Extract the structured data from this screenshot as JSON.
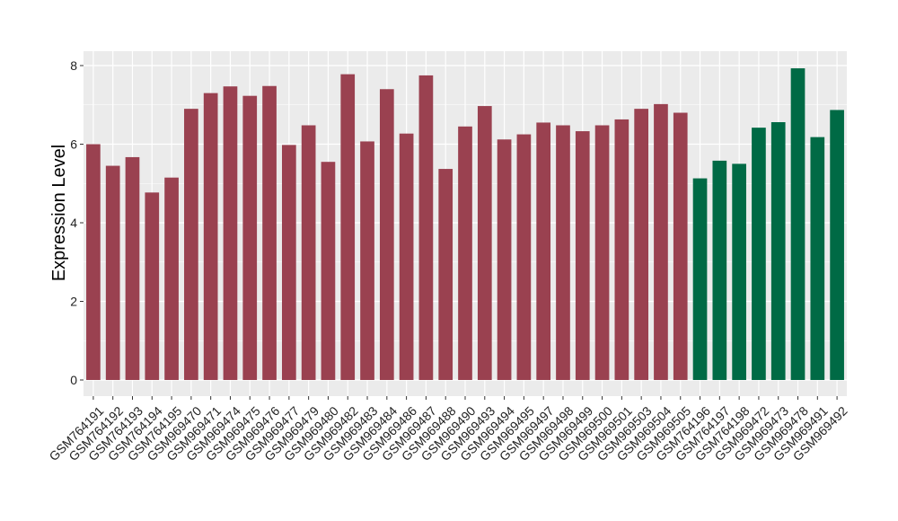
{
  "chart_data": {
    "type": "bar",
    "title": "",
    "xlabel": "",
    "ylabel": "Expression Level",
    "ylim": [
      0,
      8.3
    ],
    "yticks": [
      0,
      2,
      4,
      6,
      8
    ],
    "grid": true,
    "legend": "none",
    "background_color": "#EBEBEB",
    "grid_color": "#FFFFFF",
    "categories": [
      "GSM764191",
      "GSM764192",
      "GSM764193",
      "GSM764194",
      "GSM764195",
      "GSM969470",
      "GSM969471",
      "GSM969474",
      "GSM969475",
      "GSM969476",
      "GSM969477",
      "GSM969479",
      "GSM969480",
      "GSM969482",
      "GSM969483",
      "GSM969484",
      "GSM969486",
      "GSM969487",
      "GSM969488",
      "GSM969490",
      "GSM969493",
      "GSM969494",
      "GSM969495",
      "GSM969497",
      "GSM969498",
      "GSM969499",
      "GSM969500",
      "GSM969501",
      "GSM969503",
      "GSM969504",
      "GSM969505",
      "GSM764196",
      "GSM764197",
      "GSM764198",
      "GSM969472",
      "GSM969473",
      "GSM969478",
      "GSM969491",
      "GSM969492"
    ],
    "values": [
      6.0,
      5.45,
      5.67,
      4.77,
      5.15,
      6.9,
      7.3,
      7.47,
      7.23,
      7.48,
      5.98,
      6.48,
      5.55,
      7.78,
      6.07,
      7.4,
      6.27,
      7.75,
      5.37,
      6.45,
      6.97,
      6.12,
      6.25,
      6.55,
      6.48,
      6.33,
      6.48,
      6.63,
      6.9,
      7.02,
      6.8,
      5.13,
      5.58,
      5.5,
      6.42,
      6.56,
      7.93,
      6.18,
      6.87
    ],
    "group_colors": [
      "#9A4150",
      "#006A45"
    ],
    "groups": [
      0,
      0,
      0,
      0,
      0,
      0,
      0,
      0,
      0,
      0,
      0,
      0,
      0,
      0,
      0,
      0,
      0,
      0,
      0,
      0,
      0,
      0,
      0,
      0,
      0,
      0,
      0,
      0,
      0,
      0,
      0,
      1,
      1,
      1,
      1,
      1,
      1,
      1,
      1
    ]
  }
}
